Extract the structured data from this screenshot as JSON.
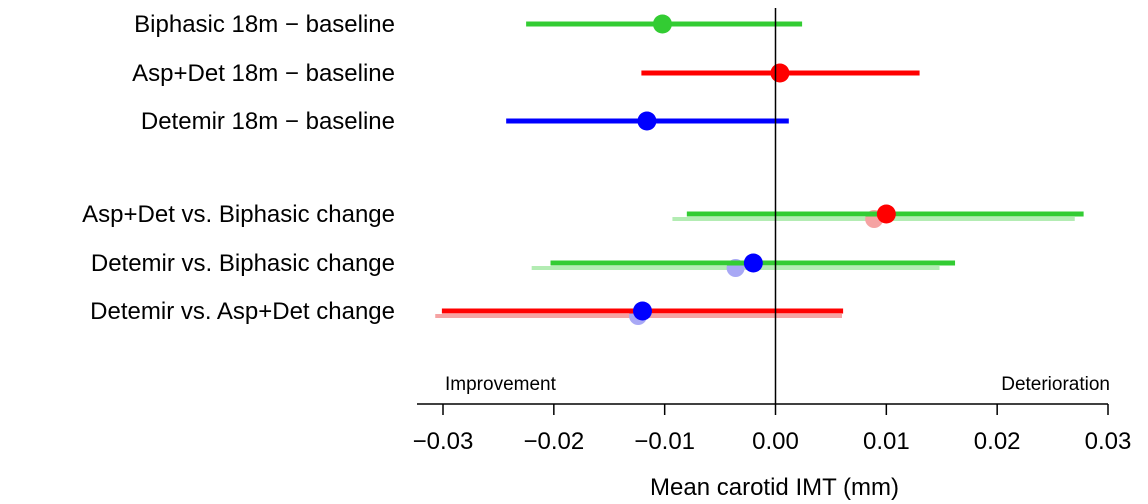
{
  "chart_data": {
    "type": "scatter",
    "subtype": "forest-plot",
    "xlabel": "Mean carotid IMT (mm)",
    "xlim": [
      -0.03,
      0.03
    ],
    "xticks": [
      -0.03,
      -0.02,
      -0.01,
      0.0,
      0.01,
      0.02,
      0.03
    ],
    "xtick_labels": [
      "−0.03",
      "−0.02",
      "−0.01",
      "0.00",
      "0.01",
      "0.02",
      "0.03"
    ],
    "reference_line": 0,
    "annotations": {
      "left": "Improvement",
      "right": "Deterioration"
    },
    "colors": {
      "green": "#33cc33",
      "red": "#ff0000",
      "blue": "#0000ff",
      "light_green": "#b3ecb3",
      "light_red": "#f5a3a3",
      "light_blue": "#a8a8f5"
    },
    "rows": [
      {
        "label": "Biphasic 18m − baseline",
        "estimate": -0.0102,
        "lower": -0.0225,
        "upper": 0.0024,
        "line_color": "green",
        "point_color": "green"
      },
      {
        "label": "Asp+Det 18m − baseline",
        "estimate": 0.0004,
        "lower": -0.0121,
        "upper": 0.013,
        "line_color": "red",
        "point_color": "red"
      },
      {
        "label": "Detemir 18m − baseline",
        "estimate": -0.0116,
        "lower": -0.0243,
        "upper": 0.0012,
        "line_color": "blue",
        "point_color": "blue"
      },
      {
        "label": "Asp+Det vs. Biphasic change",
        "estimate": 0.01,
        "lower": -0.008,
        "upper": 0.0278,
        "line_color": "green",
        "point_color": "red",
        "secondary": {
          "estimate": 0.0089,
          "lower": -0.0093,
          "upper": 0.027,
          "line_color": "light_green",
          "point_color": "light_red"
        }
      },
      {
        "label": "Detemir vs. Biphasic change",
        "estimate": -0.002,
        "lower": -0.0203,
        "upper": 0.0162,
        "line_color": "green",
        "point_color": "blue",
        "secondary": {
          "estimate": -0.0036,
          "lower": -0.022,
          "upper": 0.0148,
          "line_color": "light_green",
          "point_color": "light_blue"
        }
      },
      {
        "label": "Detemir vs. Asp+Det change",
        "estimate": -0.012,
        "lower": -0.0301,
        "upper": 0.0061,
        "line_color": "red",
        "point_color": "blue",
        "secondary": {
          "estimate": -0.0124,
          "lower": -0.0307,
          "upper": 0.006,
          "line_color": "light_red",
          "point_color": "light_blue"
        }
      }
    ]
  }
}
